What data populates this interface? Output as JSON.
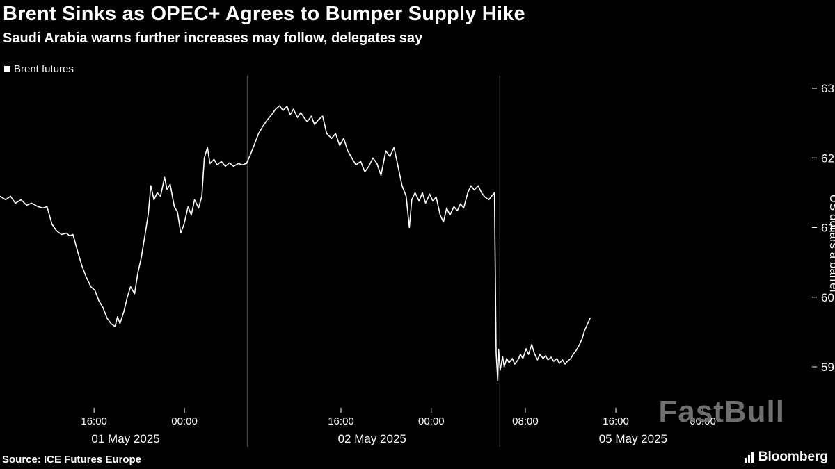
{
  "legend": {
    "marker_color": "#ffffff"
  },
  "footer": {
    "source": "Source: ICE Futures Europe",
    "brand": "Bloomberg"
  },
  "watermark": "FastBull",
  "colors": {
    "background": "#000000",
    "line": "#ffffff",
    "divider": "#4d4d4d",
    "text": "#ffffff",
    "watermark": "#6f6f6f"
  },
  "chart_data": {
    "type": "line",
    "title": "Brent Sinks as OPEC+ Agrees to Bumper Supply Hike",
    "subtitle": "Saudi Arabia warns further increases may follow, delegates say",
    "ylabel": "US dollars a barrel",
    "ylabel_side": "right",
    "yticks": [
      63,
      62,
      61,
      60,
      59
    ],
    "ylim": [
      58.55,
      63.1
    ],
    "grid": false,
    "legend": [
      "Brent futures"
    ],
    "legend_position": "top-left",
    "x_encoding": "fraction_of_axis",
    "xticks": [
      {
        "label": "16:00",
        "pos": 0.116
      },
      {
        "label": "00:00",
        "pos": 0.2275
      },
      {
        "label": "16:00",
        "pos": 0.4206
      },
      {
        "label": "00:00",
        "pos": 0.532
      },
      {
        "label": "08:00",
        "pos": 0.648
      },
      {
        "label": "16:00",
        "pos": 0.7597
      },
      {
        "label": "00:00",
        "pos": 0.867
      }
    ],
    "date_labels": [
      {
        "label": "01 May 2025",
        "pos": 0.155
      },
      {
        "label": "02 May 2025",
        "pos": 0.459
      },
      {
        "label": "05 May 2025",
        "pos": 0.781
      }
    ],
    "session_dividers": [
      0.305,
      0.6165
    ],
    "series": [
      {
        "name": "Brent futures",
        "color": "#ffffff",
        "points": [
          [
            0.0,
            61.45
          ],
          [
            0.007,
            61.4
          ],
          [
            0.013,
            61.45
          ],
          [
            0.019,
            61.35
          ],
          [
            0.026,
            61.4
          ],
          [
            0.033,
            61.32
          ],
          [
            0.039,
            61.35
          ],
          [
            0.047,
            61.3
          ],
          [
            0.053,
            61.28
          ],
          [
            0.058,
            61.3
          ],
          [
            0.064,
            61.05
          ],
          [
            0.07,
            60.95
          ],
          [
            0.076,
            60.9
          ],
          [
            0.082,
            60.92
          ],
          [
            0.086,
            60.88
          ],
          [
            0.09,
            60.9
          ],
          [
            0.096,
            60.65
          ],
          [
            0.101,
            60.45
          ],
          [
            0.106,
            60.3
          ],
          [
            0.112,
            60.15
          ],
          [
            0.117,
            60.1
          ],
          [
            0.122,
            59.95
          ],
          [
            0.127,
            59.85
          ],
          [
            0.132,
            59.7
          ],
          [
            0.137,
            59.62
          ],
          [
            0.142,
            59.58
          ],
          [
            0.145,
            59.72
          ],
          [
            0.148,
            59.62
          ],
          [
            0.153,
            59.8
          ],
          [
            0.157,
            60.0
          ],
          [
            0.161,
            60.15
          ],
          [
            0.166,
            60.05
          ],
          [
            0.17,
            60.35
          ],
          [
            0.174,
            60.55
          ],
          [
            0.179,
            60.9
          ],
          [
            0.183,
            61.2
          ],
          [
            0.186,
            61.6
          ],
          [
            0.19,
            61.4
          ],
          [
            0.194,
            61.5
          ],
          [
            0.198,
            61.45
          ],
          [
            0.203,
            61.72
          ],
          [
            0.206,
            61.55
          ],
          [
            0.21,
            61.62
          ],
          [
            0.215,
            61.3
          ],
          [
            0.219,
            61.22
          ],
          [
            0.223,
            60.92
          ],
          [
            0.227,
            61.05
          ],
          [
            0.232,
            61.3
          ],
          [
            0.236,
            61.18
          ],
          [
            0.24,
            61.4
          ],
          [
            0.245,
            61.28
          ],
          [
            0.249,
            61.45
          ],
          [
            0.252,
            62.0
          ],
          [
            0.256,
            62.15
          ],
          [
            0.259,
            61.92
          ],
          [
            0.264,
            61.98
          ],
          [
            0.268,
            61.9
          ],
          [
            0.273,
            61.95
          ],
          [
            0.278,
            61.88
          ],
          [
            0.283,
            61.93
          ],
          [
            0.288,
            61.88
          ],
          [
            0.294,
            61.92
          ],
          [
            0.299,
            61.9
          ],
          [
            0.304,
            61.92
          ],
          [
            0.309,
            62.05
          ],
          [
            0.314,
            62.2
          ],
          [
            0.319,
            62.35
          ],
          [
            0.324,
            62.45
          ],
          [
            0.33,
            62.55
          ],
          [
            0.335,
            62.62
          ],
          [
            0.34,
            62.7
          ],
          [
            0.345,
            62.75
          ],
          [
            0.349,
            62.68
          ],
          [
            0.354,
            62.74
          ],
          [
            0.358,
            62.62
          ],
          [
            0.362,
            62.7
          ],
          [
            0.367,
            62.58
          ],
          [
            0.371,
            62.65
          ],
          [
            0.375,
            62.58
          ],
          [
            0.379,
            62.52
          ],
          [
            0.384,
            62.6
          ],
          [
            0.388,
            62.48
          ],
          [
            0.393,
            62.55
          ],
          [
            0.398,
            62.6
          ],
          [
            0.403,
            62.35
          ],
          [
            0.409,
            62.28
          ],
          [
            0.414,
            62.35
          ],
          [
            0.419,
            62.18
          ],
          [
            0.424,
            62.28
          ],
          [
            0.429,
            62.1
          ],
          [
            0.434,
            62.0
          ],
          [
            0.439,
            61.9
          ],
          [
            0.445,
            61.95
          ],
          [
            0.45,
            61.8
          ],
          [
            0.455,
            61.88
          ],
          [
            0.46,
            62.0
          ],
          [
            0.465,
            61.92
          ],
          [
            0.47,
            61.75
          ],
          [
            0.476,
            62.1
          ],
          [
            0.481,
            62.02
          ],
          [
            0.486,
            62.15
          ],
          [
            0.491,
            61.88
          ],
          [
            0.496,
            61.6
          ],
          [
            0.501,
            61.45
          ],
          [
            0.505,
            61.0
          ],
          [
            0.508,
            61.4
          ],
          [
            0.512,
            61.5
          ],
          [
            0.517,
            61.38
          ],
          [
            0.521,
            61.5
          ],
          [
            0.525,
            61.35
          ],
          [
            0.53,
            61.48
          ],
          [
            0.534,
            61.38
          ],
          [
            0.538,
            61.44
          ],
          [
            0.543,
            61.18
          ],
          [
            0.547,
            61.08
          ],
          [
            0.551,
            61.28
          ],
          [
            0.555,
            61.18
          ],
          [
            0.56,
            61.3
          ],
          [
            0.564,
            61.24
          ],
          [
            0.568,
            61.34
          ],
          [
            0.572,
            61.28
          ],
          [
            0.577,
            61.5
          ],
          [
            0.581,
            61.6
          ],
          [
            0.585,
            61.54
          ],
          [
            0.59,
            61.6
          ],
          [
            0.594,
            61.5
          ],
          [
            0.598,
            61.44
          ],
          [
            0.603,
            61.4
          ],
          [
            0.607,
            61.46
          ],
          [
            0.61,
            61.5
          ],
          [
            0.612,
            59.2
          ],
          [
            0.614,
            58.8
          ],
          [
            0.615,
            59.25
          ],
          [
            0.617,
            58.95
          ],
          [
            0.62,
            59.15
          ],
          [
            0.622,
            59.0
          ],
          [
            0.625,
            59.12
          ],
          [
            0.628,
            59.06
          ],
          [
            0.632,
            59.12
          ],
          [
            0.635,
            59.04
          ],
          [
            0.639,
            59.1
          ],
          [
            0.642,
            59.18
          ],
          [
            0.645,
            59.12
          ],
          [
            0.649,
            59.26
          ],
          [
            0.652,
            59.18
          ],
          [
            0.656,
            59.32
          ],
          [
            0.659,
            59.2
          ],
          [
            0.663,
            59.1
          ],
          [
            0.666,
            59.18
          ],
          [
            0.67,
            59.12
          ],
          [
            0.673,
            59.16
          ],
          [
            0.676,
            59.1
          ],
          [
            0.68,
            59.14
          ],
          [
            0.683,
            59.08
          ],
          [
            0.687,
            59.12
          ],
          [
            0.69,
            59.05
          ],
          [
            0.694,
            59.1
          ],
          [
            0.697,
            59.04
          ],
          [
            0.7,
            59.08
          ],
          [
            0.704,
            59.12
          ],
          [
            0.707,
            59.18
          ],
          [
            0.711,
            59.24
          ],
          [
            0.714,
            59.3
          ],
          [
            0.718,
            59.4
          ],
          [
            0.721,
            59.52
          ],
          [
            0.725,
            59.62
          ],
          [
            0.728,
            59.7
          ]
        ]
      }
    ]
  }
}
